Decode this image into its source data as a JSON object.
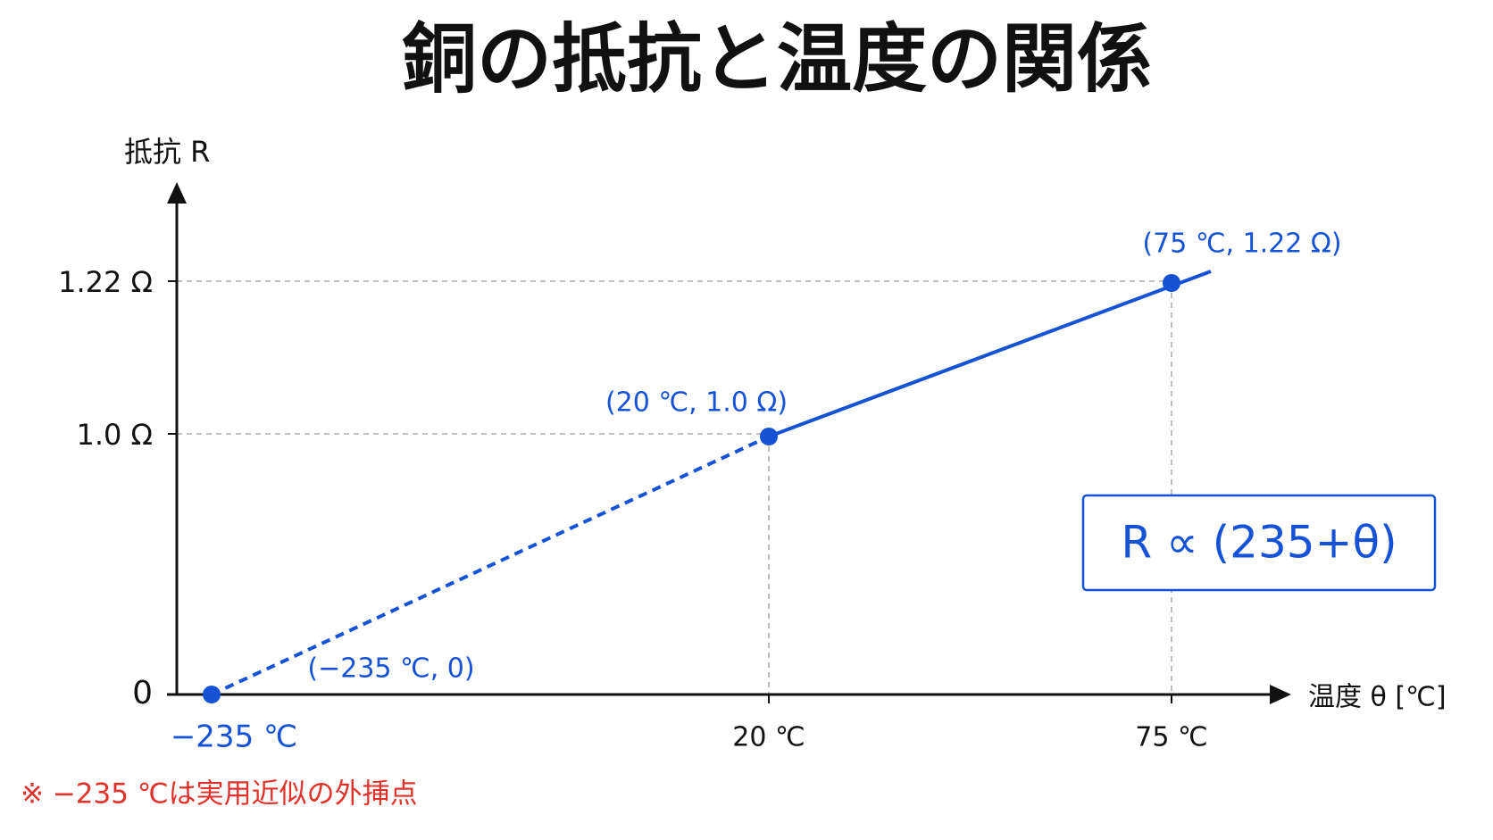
{
  "title": "銅の抵抗と温度の関係",
  "y_axis": {
    "label": "抵抗 R",
    "ticks": [
      "1.22 Ω",
      "1.0 Ω",
      "0"
    ]
  },
  "x_axis": {
    "label": "温度 θ [℃]",
    "ticks": [
      "−235 ℃",
      "20 ℃",
      "75 ℃"
    ]
  },
  "points": [
    {
      "label": "(−235 ℃, 0)"
    },
    {
      "label": "(20 ℃, 1.0 Ω)"
    },
    {
      "label": "(75 ℃, 1.22 Ω)"
    }
  ],
  "formula": "R ∝ (235+θ)",
  "note": "※ −235 ℃は実用近似の外挿点"
}
